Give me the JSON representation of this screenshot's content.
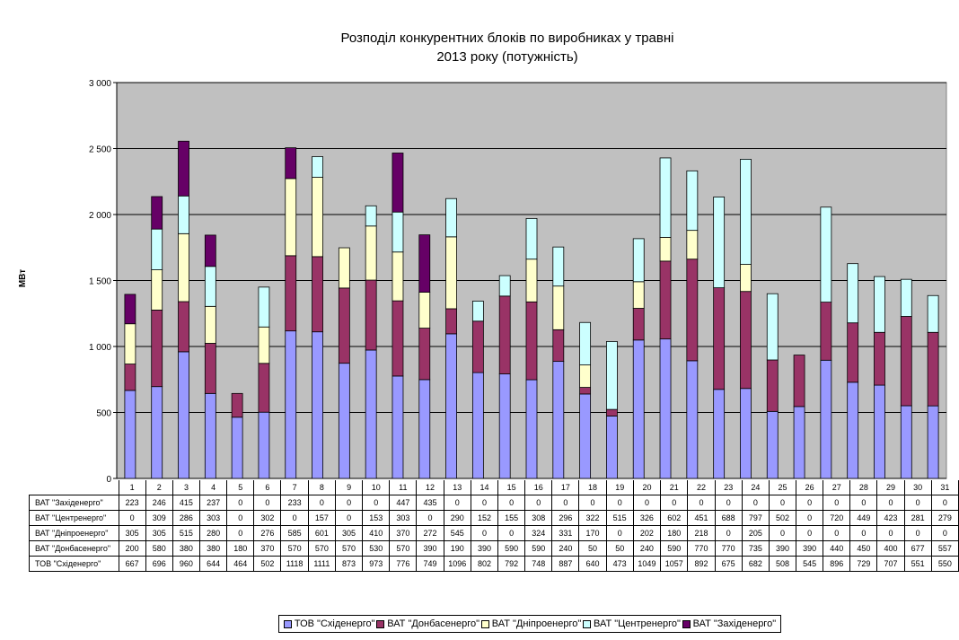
{
  "chart_data": {
    "type": "bar",
    "stacked": true,
    "title_lines": [
      "Розподіл конкурентних блоків по виробниках у травні",
      "2013 року (потужність)"
    ],
    "ylabel": "МВт",
    "xlabel": "",
    "ylim": [
      0,
      3000
    ],
    "ytick_values": [
      0,
      500,
      1000,
      1500,
      2000,
      2500,
      3000
    ],
    "ytick_labels": [
      "0",
      "500",
      "1 000",
      "1 500",
      "2 000",
      "2 500",
      "3 000"
    ],
    "grid": true,
    "legend_position": "bottom",
    "categories": [
      "1",
      "2",
      "3",
      "4",
      "5",
      "6",
      "7",
      "8",
      "9",
      "10",
      "11",
      "12",
      "13",
      "14",
      "15",
      "16",
      "17",
      "18",
      "19",
      "20",
      "21",
      "22",
      "23",
      "24",
      "25",
      "26",
      "27",
      "28",
      "29",
      "30",
      "31"
    ],
    "series": [
      {
        "name": "ТОВ \"Сxiденерго\"",
        "color": "#9999ff",
        "values": [
          667,
          696,
          960,
          644,
          464,
          502,
          1118,
          1111,
          873,
          973,
          776,
          749,
          1096,
          802,
          792,
          748,
          887,
          640,
          473,
          1049,
          1057,
          892,
          675,
          682,
          508,
          545,
          896,
          729,
          707,
          551,
          550
        ]
      },
      {
        "name": "ВАТ \"Донбасенерго\"",
        "color": "#993366",
        "values": [
          200,
          580,
          380,
          380,
          180,
          370,
          570,
          570,
          570,
          530,
          570,
          390,
          190,
          390,
          590,
          590,
          240,
          50,
          50,
          240,
          590,
          770,
          770,
          735,
          390,
          390,
          440,
          450,
          400,
          677,
          557
        ]
      },
      {
        "name": "ВАТ \"Дніпроенерго\"",
        "color": "#ffffcc",
        "values": [
          305,
          305,
          515,
          280,
          0,
          276,
          585,
          601,
          305,
          410,
          370,
          272,
          545,
          0,
          0,
          324,
          331,
          170,
          0,
          202,
          180,
          218,
          0,
          205,
          0,
          0,
          0,
          0,
          0,
          0,
          0
        ]
      },
      {
        "name": "ВАТ \"Центренерго\"",
        "color": "#ccffff",
        "values": [
          0,
          309,
          286,
          303,
          0,
          302,
          0,
          157,
          0,
          153,
          303,
          0,
          290,
          152,
          155,
          308,
          296,
          322,
          515,
          326,
          602,
          451,
          688,
          797,
          502,
          0,
          720,
          449,
          423,
          281,
          279
        ]
      },
      {
        "name": "ВАТ \"Західенерго\"",
        "color": "#660066",
        "values": [
          223,
          246,
          415,
          237,
          0,
          0,
          233,
          0,
          0,
          0,
          447,
          435,
          0,
          0,
          0,
          0,
          0,
          0,
          0,
          0,
          0,
          0,
          0,
          0,
          0,
          0,
          0,
          0,
          0,
          0,
          0
        ]
      }
    ],
    "table_rows": [
      {
        "label": "ВАТ \"Західенерго\"",
        "series_index": 4
      },
      {
        "label": "ВАТ \"Центренерго\"",
        "series_index": 3
      },
      {
        "label": "ВАТ \"Дніпроенерго\"",
        "series_index": 2
      },
      {
        "label": "ВАТ \"Донбасенерго\"",
        "series_index": 1
      },
      {
        "label": "ТОВ \"Сxiденерго\"",
        "series_index": 0
      }
    ],
    "plot_background": "#c0c0c0"
  },
  "legend": {
    "items": [
      {
        "label": "ТОВ \"Сxiденерго\"",
        "color": "#9999ff"
      },
      {
        "label": "ВАТ \"Донбасенерго\"",
        "color": "#993366"
      },
      {
        "label": "ВАТ \"Дніпроенерго\"",
        "color": "#ffffcc"
      },
      {
        "label": "ВАТ \"Центренерго\"",
        "color": "#ccffff"
      },
      {
        "label": "ВАТ \"Західенерго\"",
        "color": "#660066"
      }
    ]
  }
}
